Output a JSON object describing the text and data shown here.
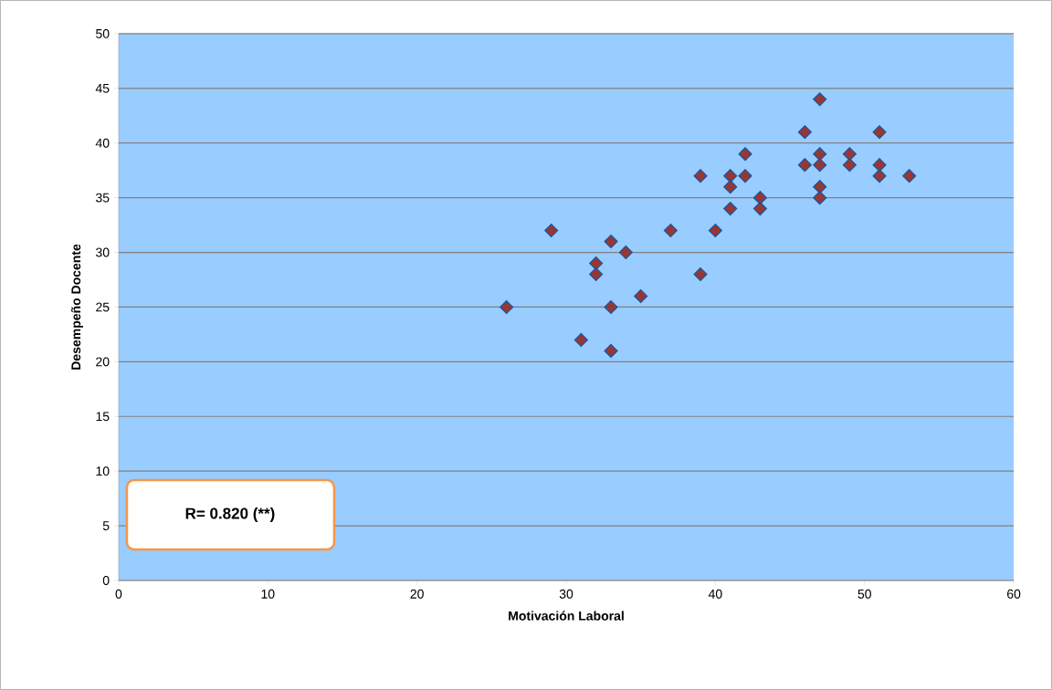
{
  "chart_data": {
    "type": "scatter",
    "xlabel": "Motivación Laboral",
    "ylabel": "Desempeño Docente",
    "annotations": [
      "R= 0.820 (**)"
    ],
    "x": [
      26,
      29,
      31,
      32,
      32,
      33,
      33,
      33,
      34,
      35,
      37,
      39,
      39,
      40,
      41,
      41,
      41,
      42,
      42,
      43,
      43,
      46,
      46,
      47,
      47,
      47,
      47,
      47,
      49,
      49,
      51,
      51,
      51,
      53
    ],
    "values": [
      25,
      32,
      22,
      29,
      28,
      31,
      25,
      21,
      30,
      26,
      32,
      37,
      28,
      32,
      37,
      36,
      34,
      39,
      37,
      35,
      34,
      41,
      38,
      44,
      39,
      38,
      36,
      35,
      39,
      38,
      41,
      38,
      37,
      37
    ],
    "color": "#953735",
    "marker": "diamond",
    "xlim": [
      0,
      60
    ],
    "xticks": [
      0,
      10,
      20,
      30,
      40,
      50,
      60
    ],
    "ylim": [
      0,
      50
    ],
    "yticks": [
      0,
      5,
      10,
      15,
      20,
      25,
      30,
      35,
      40,
      45,
      50
    ],
    "grid": "y"
  }
}
